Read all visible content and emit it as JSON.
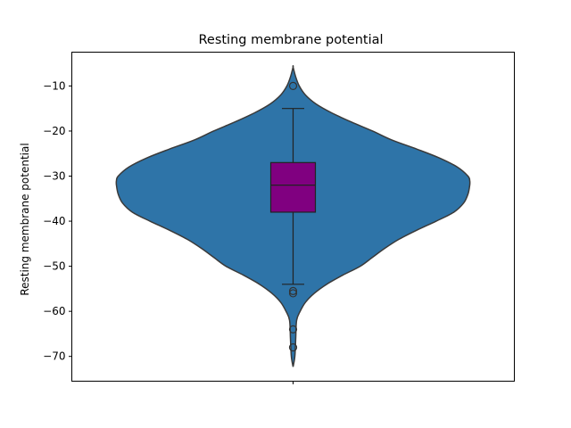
{
  "chart_data": {
    "type": "violin",
    "title": "Resting membrane potential",
    "xlabel": "",
    "ylabel": "Resting membrane potential",
    "ylim": [
      -75.5,
      -2.5
    ],
    "yticks": [
      -10,
      -20,
      -30,
      -40,
      -50,
      -60,
      -70
    ],
    "grid": false,
    "violin": {
      "color": "#2e74a8",
      "edge_color": "#3a3a3a",
      "y_min": -72.3,
      "y_max": -5.8,
      "density_profile": [
        [
          -72.3,
          0.0
        ],
        [
          -70,
          0.01
        ],
        [
          -66,
          0.015
        ],
        [
          -62,
          0.02
        ],
        [
          -60,
          0.04
        ],
        [
          -58,
          0.07
        ],
        [
          -56,
          0.12
        ],
        [
          -54,
          0.19
        ],
        [
          -52,
          0.28
        ],
        [
          -50,
          0.38
        ],
        [
          -48,
          0.45
        ],
        [
          -46,
          0.52
        ],
        [
          -44,
          0.6
        ],
        [
          -42,
          0.7
        ],
        [
          -40,
          0.81
        ],
        [
          -38,
          0.91
        ],
        [
          -36,
          0.965
        ],
        [
          -34,
          0.99
        ],
        [
          -32,
          1.0
        ],
        [
          -31,
          1.0
        ],
        [
          -30,
          0.99
        ],
        [
          -28,
          0.93
        ],
        [
          -26,
          0.83
        ],
        [
          -24,
          0.7
        ],
        [
          -22,
          0.56
        ],
        [
          -20,
          0.45
        ],
        [
          -18,
          0.33
        ],
        [
          -16,
          0.22
        ],
        [
          -14,
          0.13
        ],
        [
          -12,
          0.07
        ],
        [
          -10,
          0.035
        ],
        [
          -8,
          0.015
        ],
        [
          -5.8,
          0.0
        ]
      ]
    },
    "box": {
      "color": "#800080",
      "q1": -38,
      "median": -32,
      "q3": -27,
      "whisker_low": -54,
      "whisker_high": -15
    },
    "outliers": [
      -10,
      -55.5,
      -56,
      -64,
      -68
    ]
  }
}
